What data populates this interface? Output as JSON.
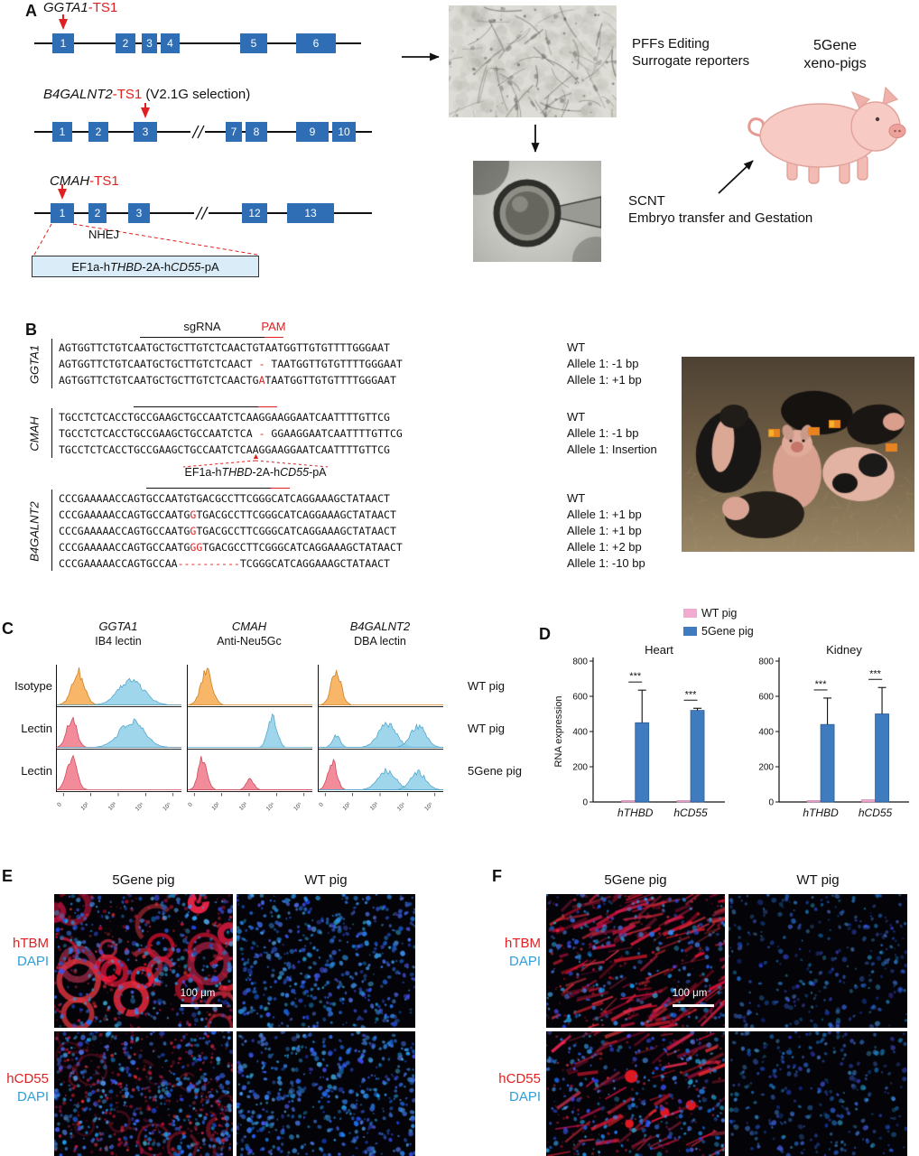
{
  "panels": {
    "A": "A",
    "B": "B",
    "C": "C",
    "D": "D",
    "E": "E",
    "F": "F"
  },
  "colors": {
    "exon_blue": "#2f6eb4",
    "accent_red": "#e02020",
    "flow_orange": "#f7a94e",
    "flow_blue": "#8fcfe9",
    "flow_red": "#f0788a",
    "bar_pink": "#f2abd0",
    "bar_blue": "#3e7bbf",
    "marker_red": "#e02020",
    "dapi_blue": "#2f9fd8",
    "cassette_bg": "#d9ecf7"
  },
  "cassette": {
    "p1": "EF1a-h",
    "i1": "THBD",
    "p2": "-2A-h",
    "i2": "CD55",
    "p3": "-pA"
  },
  "panelA": {
    "genes": [
      {
        "name": "GGTA1",
        "ts": "-TS1",
        "note": "",
        "exons": [
          "1",
          "2",
          "3",
          "4",
          "5",
          "6"
        ]
      },
      {
        "name": "B4GALNT2",
        "ts": "-TS1",
        "note": " (V2.1G selection)",
        "exons": [
          "1",
          "2",
          "3",
          "7",
          "8",
          "9",
          "10"
        ]
      },
      {
        "name": "CMAH",
        "ts": "-TS1",
        "note": "",
        "exons": [
          "1",
          "2",
          "3",
          "12",
          "13"
        ]
      }
    ],
    "nhej": "NHEJ",
    "pff_line1": "PFFs Editing",
    "pff_line2": "Surrogate reporters",
    "scnt_line1": "SCNT",
    "scnt_line2": "Embryo transfer and Gestation",
    "pig_line1": "5Gene",
    "pig_line2": "xeno-pigs"
  },
  "panelB": {
    "sgrna_label": "sgRNA",
    "pam_label": "PAM",
    "groups": [
      {
        "gene": "GGTA1",
        "rows": [
          {
            "seq": [
              {
                "t": "AGTGGTTCTGTCAATGCTGCTTGTCTCAACTGTAATGGTTGTGTTTTGGGAAT",
                "red": false
              }
            ],
            "label": "WT"
          },
          {
            "seq": [
              {
                "t": "AGTGGTTCTGTCAATGCTGCTTGTCTCAACT",
                "red": false
              },
              {
                "t": " - ",
                "red": true
              },
              {
                "t": "TAATGGTTGTGTTTTGGGAAT",
                "red": false
              }
            ],
            "label": "Allele 1: -1 bp"
          },
          {
            "seq": [
              {
                "t": "AGTGGTTCTGTCAATGCTGCTTGTCTCAACTG",
                "red": false
              },
              {
                "t": "A",
                "red": true
              },
              {
                "t": "TAATGGTTGTGTTTTGGGAAT",
                "red": false
              }
            ],
            "label": "Allele 1: +1 bp"
          }
        ]
      },
      {
        "gene": "CMAH",
        "rows": [
          {
            "seq": [
              {
                "t": "TGCCTCTCACCTGCCGAAGCTGCCAATCTCAAGGAAGGAATCAATTTTGTTCG",
                "red": false
              }
            ],
            "label": "WT"
          },
          {
            "seq": [
              {
                "t": "TGCCTCTCACCTGCCGAAGCTGCCAATCTCA",
                "red": false
              },
              {
                "t": " - ",
                "red": true
              },
              {
                "t": "GGAAGGAATCAATTTTGTTCG",
                "red": false
              }
            ],
            "label": "Allele 1: -1 bp"
          },
          {
            "se q_note": "",
            "seq": [
              {
                "t": "TGCCTCTCACCTGCCGAAGCTGCCAATCTCAAGGAAGGAATCAATTTTGTTCG",
                "red": false
              }
            ],
            "label": "Allele 1: Insertion"
          }
        ]
      },
      {
        "gene": "B4GALNT2",
        "rows": [
          {
            "seq": [
              {
                "t": "CCCGAAAAACCAGTGCCAATGTGACGCCTTCGGGCATCAGGAAAGCTATAACT",
                "red": false
              }
            ],
            "label": "WT"
          },
          {
            "seq": [
              {
                "t": "CCCGAAAAACCAGTGCCAATG",
                "red": false
              },
              {
                "t": "G",
                "red": true
              },
              {
                "t": "TGACGCCTTCGGGCATCAGGAAAGCTATAACT",
                "red": false
              }
            ],
            "label": "Allele 1: +1 bp"
          },
          {
            "seq": [
              {
                "t": "CCCGAAAAACCAGTGCCAATG",
                "red": false
              },
              {
                "t": "G",
                "red": true
              },
              {
                "t": "TGACGCCTTCGGGCATCAGGAAAGCTATAACT",
                "red": false
              }
            ],
            "label": "Allele 1: +1 bp"
          },
          {
            "seq": [
              {
                "t": "CCCGAAAAACCAGTGCCAATG",
                "red": false
              },
              {
                "t": "GG",
                "red": true
              },
              {
                "t": "TGACGCCTTCGGGCATCAGGAAAGCTATAACT",
                "red": false
              }
            ],
            "label": "Allele 1: +2 bp"
          },
          {
            "seq": [
              {
                "t": "CCCGAAAAACCAGTGCCAA",
                "red": false
              },
              {
                "t": "----------",
                "red": true
              },
              {
                "t": "TCGGGCATCAGGAAAGCTATAACT",
                "red": false
              }
            ],
            "label": "Allele 1: -10 bp"
          }
        ]
      }
    ]
  },
  "panelC": {
    "columns": [
      {
        "gene": "GGTA1",
        "stain": "IB4 lectin"
      },
      {
        "gene": "CMAH",
        "stain": "Anti-Neu5Gc"
      },
      {
        "gene": "B4GALNT2",
        "stain": "DBA lectin"
      }
    ],
    "row_labels": [
      "Isotype",
      "Lectin",
      "Lectin"
    ],
    "right_labels": [
      "WT pig",
      "WT pig",
      "5Gene pig"
    ],
    "x_ticks": [
      "0",
      "10²",
      "10³",
      "10⁴",
      "10⁵"
    ],
    "histograms": [
      [
        [
          {
            "color": "orange",
            "c": 0.17,
            "w": 0.05,
            "h": 0.95
          },
          {
            "color": "blue",
            "c": 0.6,
            "w": 0.1,
            "h": 0.72
          }
        ],
        [
          {
            "color": "red",
            "c": 0.12,
            "w": 0.04,
            "h": 0.82
          },
          {
            "color": "blue",
            "c": 0.6,
            "w": 0.1,
            "h": 0.72
          }
        ],
        [
          {
            "color": "red",
            "c": 0.12,
            "w": 0.04,
            "h": 0.9
          }
        ]
      ],
      [
        [
          {
            "color": "orange",
            "c": 0.15,
            "w": 0.045,
            "h": 0.95
          }
        ],
        [
          {
            "color": "blue",
            "c": 0.68,
            "w": 0.035,
            "h": 0.9
          }
        ],
        [
          {
            "color": "red",
            "c": 0.12,
            "w": 0.035,
            "h": 0.9
          },
          {
            "color": "red",
            "c": 0.5,
            "w": 0.03,
            "h": 0.3
          }
        ]
      ],
      [
        [
          {
            "color": "orange",
            "c": 0.14,
            "w": 0.04,
            "h": 0.95
          }
        ],
        [
          {
            "color": "blue",
            "c": 0.14,
            "w": 0.03,
            "h": 0.35
          },
          {
            "color": "blue",
            "c": 0.55,
            "w": 0.07,
            "h": 0.7
          },
          {
            "color": "blue",
            "c": 0.8,
            "w": 0.06,
            "h": 0.62
          }
        ],
        [
          {
            "color": "red",
            "c": 0.11,
            "w": 0.035,
            "h": 0.85
          },
          {
            "color": "blue",
            "c": 0.55,
            "w": 0.07,
            "h": 0.55
          },
          {
            "color": "blue",
            "c": 0.8,
            "w": 0.06,
            "h": 0.5
          }
        ]
      ]
    ]
  },
  "panelD": {
    "legend": [
      {
        "label": "WT pig",
        "color": "#f2abd0"
      },
      {
        "label": "5Gene pig",
        "color": "#3e7bbf"
      }
    ]
  },
  "chart_data": [
    {
      "type": "bar",
      "title": "Heart",
      "ylabel": "RNA expression",
      "ylim": [
        0,
        800
      ],
      "yticks": [
        0,
        200,
        400,
        600,
        800
      ],
      "categories": [
        "hTHBD",
        "hCD55"
      ],
      "series": [
        {
          "name": "WT pig",
          "color": "#f2abd0",
          "values": [
            4,
            4
          ],
          "errors": [
            0,
            0
          ]
        },
        {
          "name": "5Gene pig",
          "color": "#3e7bbf",
          "values": [
            450,
            520
          ],
          "errors": [
            185,
            12
          ]
        }
      ],
      "significance": [
        "***",
        "***"
      ],
      "legend_position": "top-right",
      "grid": false
    },
    {
      "type": "bar",
      "title": "Kidney",
      "ylabel": "",
      "ylim": [
        0,
        800
      ],
      "yticks": [
        0,
        200,
        400,
        600,
        800
      ],
      "categories": [
        "hTHBD",
        "hCD55"
      ],
      "series": [
        {
          "name": "WT pig",
          "color": "#f2abd0",
          "values": [
            4,
            12
          ],
          "errors": [
            0,
            0
          ]
        },
        {
          "name": "5Gene pig",
          "color": "#3e7bbf",
          "values": [
            440,
            500
          ],
          "errors": [
            150,
            150
          ]
        }
      ],
      "significance": [
        "***",
        "***"
      ],
      "grid": false
    }
  ],
  "panelE": {
    "col_headers": [
      "5Gene pig",
      "WT pig"
    ],
    "rows": [
      {
        "marker": "hTBM",
        "stain": "DAPI"
      },
      {
        "marker": "hCD55",
        "stain": "DAPI"
      }
    ],
    "scale_bar": "100 μm"
  },
  "panelF": {
    "col_headers": [
      "5Gene pig",
      "WT pig"
    ],
    "rows": [
      {
        "marker": "hTBM",
        "stain": "DAPI"
      },
      {
        "marker": "hCD55",
        "stain": "DAPI"
      }
    ],
    "scale_bar": "100 μm"
  }
}
